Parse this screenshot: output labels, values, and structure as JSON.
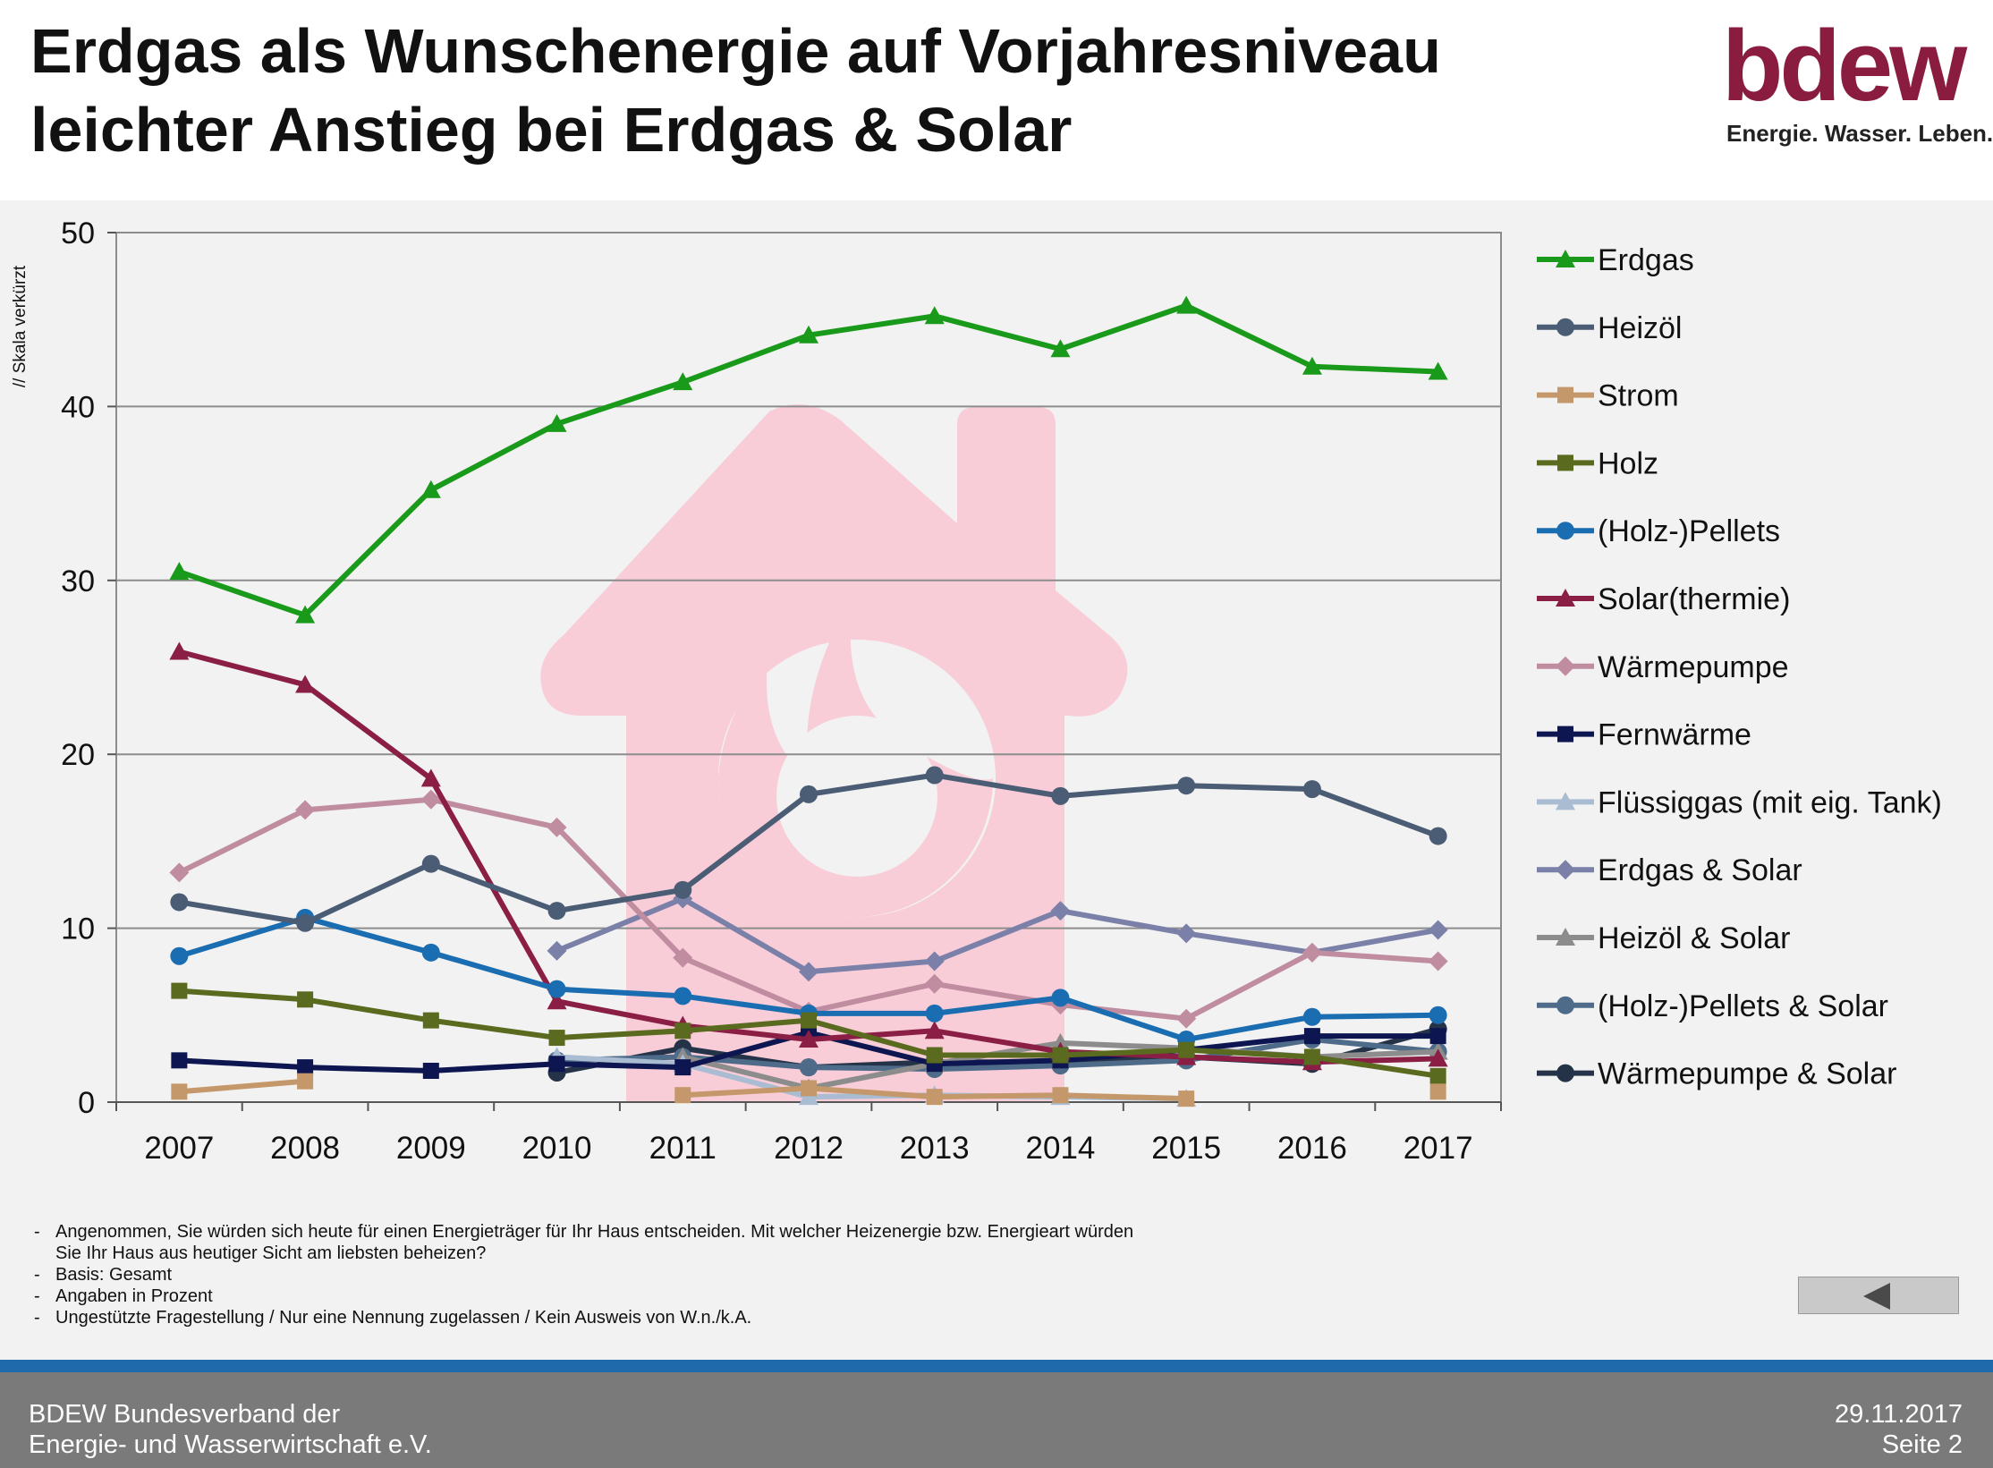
{
  "header": {
    "title_line1": "Erdgas als Wunschenergie auf Vorjahresniveau",
    "title_line2": "leichter Anstieg bei Erdgas & Solar",
    "logo_text": "bdew",
    "logo_tagline": "Energie. Wasser. Leben.",
    "logo_color": "#8a1c3f"
  },
  "chart_data": {
    "type": "line",
    "title": "",
    "xlabel": "",
    "ylabel": "// Skala verkürzt",
    "ylim": [
      0,
      50
    ],
    "yticks": [
      0,
      10,
      20,
      30,
      40,
      50
    ],
    "grid": true,
    "legend_position": "right",
    "background_icon": "house-flame-icon",
    "x": [
      "2007",
      "2008",
      "2009",
      "2010",
      "2011",
      "2012",
      "2013",
      "2014",
      "2015",
      "2016",
      "2017"
    ],
    "series": [
      {
        "name": "Erdgas",
        "color": "#1a9a1a",
        "marker": "triangle",
        "values": [
          30.5,
          28.0,
          35.2,
          39.0,
          41.4,
          44.1,
          45.2,
          43.3,
          45.8,
          42.3,
          42.0
        ]
      },
      {
        "name": "Heizöl",
        "color": "#4b5c75",
        "marker": "circle",
        "values": [
          11.5,
          10.3,
          13.7,
          11.0,
          12.2,
          17.7,
          18.8,
          17.6,
          18.2,
          18.0,
          15.3
        ]
      },
      {
        "name": "Strom",
        "color": "#c4986a",
        "marker": "square",
        "values": [
          0.6,
          1.2,
          null,
          null,
          0.4,
          0.8,
          0.3,
          0.4,
          0.2,
          null,
          0.6
        ]
      },
      {
        "name": "Holz",
        "color": "#5a6a1e",
        "marker": "square",
        "values": [
          6.4,
          5.9,
          4.7,
          3.7,
          4.1,
          4.7,
          2.7,
          2.7,
          3.0,
          2.6,
          1.5
        ]
      },
      {
        "name": "(Holz-)Pellets",
        "color": "#1a6db0",
        "marker": "circle",
        "values": [
          8.4,
          10.6,
          8.6,
          6.5,
          6.1,
          5.1,
          5.1,
          6.0,
          3.6,
          4.9,
          5.0
        ]
      },
      {
        "name": "Solar(thermie)",
        "color": "#8b1e45",
        "marker": "triangle",
        "values": [
          25.9,
          24.0,
          18.6,
          5.8,
          4.4,
          3.6,
          4.1,
          2.9,
          2.6,
          2.3,
          2.5
        ]
      },
      {
        "name": "Wärmepumpe",
        "color": "#c08ca0",
        "marker": "diamond",
        "values": [
          13.2,
          16.8,
          17.4,
          15.8,
          8.3,
          5.2,
          6.8,
          5.6,
          4.8,
          8.6,
          8.1
        ]
      },
      {
        "name": "Fernwärme",
        "color": "#0d1650",
        "marker": "square",
        "values": [
          2.4,
          2.0,
          1.8,
          2.2,
          2.0,
          4.0,
          2.2,
          2.4,
          3.0,
          3.8,
          3.8
        ]
      },
      {
        "name": "Flüssiggas (mit eig. Tank)",
        "color": "#a9bcd1",
        "marker": "triangle",
        "values": [
          null,
          null,
          null,
          2.6,
          2.2,
          0.3,
          0.4,
          0.3,
          0.2,
          null,
          null
        ]
      },
      {
        "name": "Erdgas & Solar",
        "color": "#7b80a8",
        "marker": "diamond",
        "values": [
          null,
          null,
          null,
          8.7,
          11.7,
          7.5,
          8.1,
          11.0,
          9.7,
          8.6,
          9.9
        ]
      },
      {
        "name": "Heizöl & Solar",
        "color": "#8c8c8c",
        "marker": "triangle",
        "values": [
          null,
          null,
          null,
          null,
          2.6,
          0.8,
          2.2,
          3.4,
          3.1,
          2.6,
          2.9
        ]
      },
      {
        "name": "(Holz-)Pellets & Solar",
        "color": "#4f6b8a",
        "marker": "circle",
        "values": [
          null,
          null,
          null,
          2.4,
          2.6,
          2.0,
          1.9,
          2.1,
          2.4,
          3.6,
          2.9
        ]
      },
      {
        "name": "Wärmepumpe & Solar",
        "color": "#243347",
        "marker": "circle",
        "values": [
          null,
          null,
          null,
          1.7,
          3.1,
          2.0,
          2.3,
          2.3,
          2.6,
          2.2,
          4.2
        ]
      }
    ]
  },
  "notes": {
    "line1": "Angenommen, Sie würden sich heute für einen Energieträger für Ihr Haus entscheiden. Mit welcher Heizenergie bzw. Energieart würden",
    "line1b": "Sie Ihr Haus aus heutiger Sicht am liebsten beheizen?",
    "line2": "Basis: Gesamt",
    "line3": "Angaben in Prozent",
    "line4": "Ungestützte Fragestellung / Nur eine Nennung zugelassen / Kein Ausweis von W.n./k.A.",
    "dash": "-"
  },
  "nav": {
    "back_icon": "triangle-left-icon"
  },
  "footer": {
    "org_line1": "BDEW Bundesverband der",
    "org_line2": "Energie- und Wasserwirtschaft e.V.",
    "date": "29.11.2017",
    "page": "Seite 2",
    "stripe_color": "#1f6aab"
  }
}
